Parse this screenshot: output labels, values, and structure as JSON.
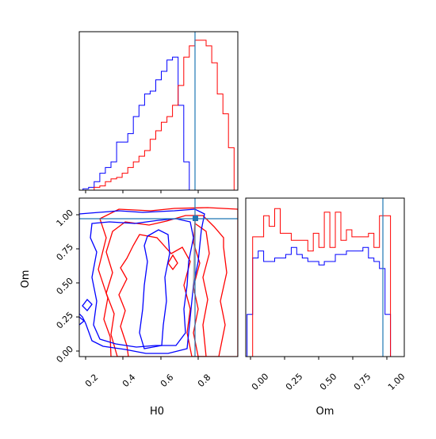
{
  "chart_data": [
    {
      "type": "histogram",
      "panel": "H0 marginal",
      "xlim": [
        0.15,
        1.0
      ],
      "bin_edges": [
        0.17,
        0.2,
        0.23,
        0.26,
        0.29,
        0.32,
        0.35,
        0.38,
        0.41,
        0.44,
        0.47,
        0.5,
        0.53,
        0.56,
        0.59,
        0.62,
        0.65,
        0.68,
        0.71,
        0.74,
        0.77,
        0.8,
        0.83,
        0.86,
        0.89,
        0.92,
        0.95,
        0.98
      ],
      "series": [
        {
          "color": "#0000ff",
          "values": [
            0.5,
            1,
            3,
            6,
            8,
            10,
            17,
            17,
            20,
            26,
            30,
            34,
            35,
            39,
            42,
            46,
            47,
            30,
            10,
            0,
            0,
            0,
            0,
            0,
            0,
            0,
            0
          ]
        },
        {
          "color": "#ff0000",
          "values": [
            0,
            0,
            1,
            1.5,
            3,
            4,
            4.5,
            6,
            8,
            10,
            12,
            14,
            18,
            21,
            24,
            26,
            30,
            37,
            47,
            51,
            53,
            53,
            51,
            45,
            34,
            27,
            15
          ]
        }
      ],
      "truth_line": {
        "x": 0.775,
        "color": "#1f77b4"
      }
    },
    {
      "type": "contour",
      "panel": "H0 vs Om",
      "xlabel": "H0",
      "ylabel": "Om",
      "xlim": [
        0.15,
        1.0
      ],
      "ylim": [
        -0.02,
        1.12
      ],
      "xticks": [
        "0.2",
        "0.4",
        "0.6",
        "0.8"
      ],
      "yticks": [
        "0.00",
        "0.25",
        "0.50",
        "0.75",
        "1.00"
      ],
      "series": [
        {
          "color": "#0000ff",
          "levels": 3
        },
        {
          "color": "#ff0000",
          "levels": 3
        }
      ],
      "truth_point": {
        "x": 0.775,
        "y": 0.965,
        "color": "#1f77b4"
      }
    },
    {
      "type": "histogram",
      "panel": "Om marginal",
      "xlabel": "Om",
      "xlim": [
        -0.05,
        1.1
      ],
      "xticks": [
        "0.00",
        "0.25",
        "0.50",
        "0.75",
        "1.00"
      ],
      "bin_edges": [
        -0.04,
        0.0,
        0.04,
        0.08,
        0.12,
        0.16,
        0.2,
        0.24,
        0.28,
        0.32,
        0.36,
        0.4,
        0.44,
        0.48,
        0.52,
        0.56,
        0.6,
        0.64,
        0.68,
        0.72,
        0.76,
        0.8,
        0.84,
        0.88,
        0.92,
        0.96,
        1.0,
        1.04
      ],
      "series": [
        {
          "color": "#0000ff",
          "values": [
            12,
            28,
            30,
            27,
            27,
            28,
            28,
            29,
            31,
            29,
            28,
            27,
            27,
            26,
            27,
            27,
            29,
            29,
            30,
            30,
            30,
            31,
            28,
            27,
            25,
            12,
            0
          ]
        },
        {
          "color": "#ff0000",
          "values": [
            0,
            34,
            34,
            40,
            37,
            42,
            35,
            35,
            33,
            33,
            33,
            30,
            35,
            31,
            41,
            31,
            41,
            33,
            36,
            34,
            34,
            34,
            35,
            31,
            40,
            40,
            0
          ]
        }
      ],
      "truth_line": {
        "x": 0.965,
        "color": "#1f77b4"
      }
    }
  ]
}
